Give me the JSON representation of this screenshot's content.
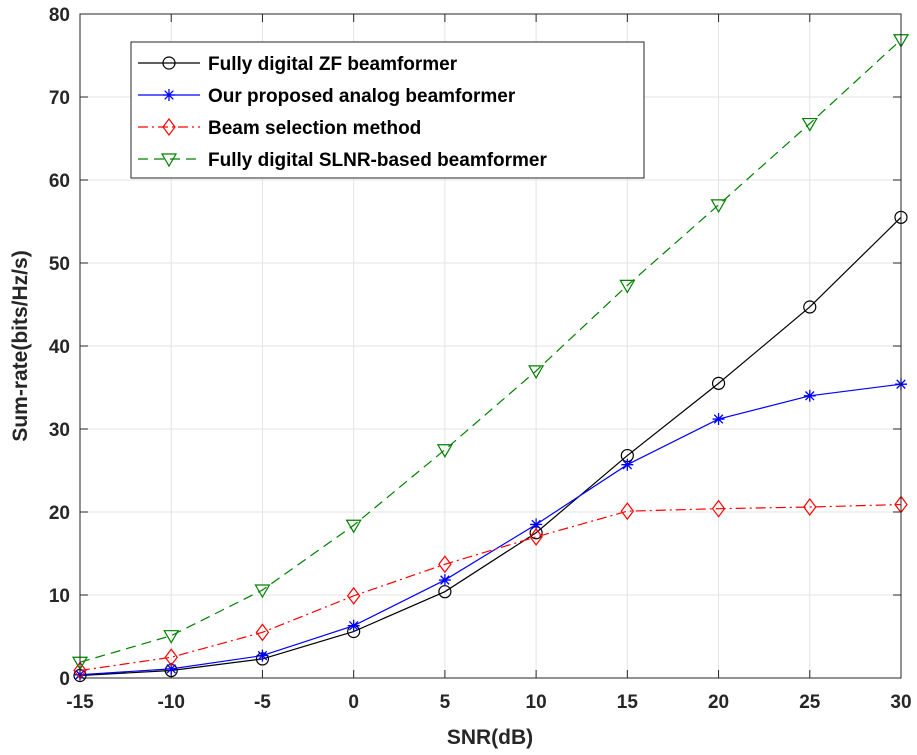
{
  "chart_data": {
    "type": "line",
    "xlabel": "SNR(dB)",
    "ylabel": "Sum-rate(bits/Hz/s)",
    "xlim": [
      -15,
      30
    ],
    "ylim": [
      0,
      80
    ],
    "xticks": [
      -15,
      -10,
      -5,
      0,
      5,
      10,
      15,
      20,
      25,
      30
    ],
    "yticks": [
      0,
      10,
      20,
      30,
      40,
      50,
      60,
      70,
      80
    ],
    "xtick_labels": [
      "-15",
      "-10",
      "-5",
      "0",
      "5",
      "10",
      "15",
      "20",
      "25",
      "30"
    ],
    "ytick_labels": [
      "0",
      "10",
      "20",
      "30",
      "40",
      "50",
      "60",
      "70",
      "80"
    ],
    "grid": true,
    "legend_position": "top-left",
    "x": [
      -15,
      -10,
      -5,
      0,
      5,
      10,
      15,
      20,
      25,
      30
    ],
    "series": [
      {
        "name": "Fully digital ZF beamformer",
        "color": "#000000",
        "marker": "circle",
        "dash": "solid",
        "values": [
          0.3,
          0.9,
          2.3,
          5.6,
          10.4,
          17.5,
          26.8,
          35.5,
          44.7,
          55.5
        ]
      },
      {
        "name": "Our proposed analog beamformer",
        "color": "#0000ff",
        "marker": "asterisk",
        "dash": "solid",
        "values": [
          0.4,
          1.1,
          2.7,
          6.3,
          11.8,
          18.5,
          25.7,
          31.2,
          34.0,
          35.4
        ]
      },
      {
        "name": "Beam selection method",
        "color": "#ff0000",
        "marker": "diamond",
        "dash": "dashdot",
        "values": [
          0.9,
          2.5,
          5.5,
          9.9,
          13.7,
          17.0,
          20.1,
          20.4,
          20.6,
          20.9
        ]
      },
      {
        "name": "Fully digital SLNR-based beamformer",
        "color": "#008000",
        "marker": "triangle-down",
        "dash": "dashed",
        "values": [
          1.9,
          5.1,
          10.6,
          18.4,
          27.5,
          37.0,
          47.3,
          57.0,
          66.8,
          76.9
        ]
      }
    ]
  }
}
